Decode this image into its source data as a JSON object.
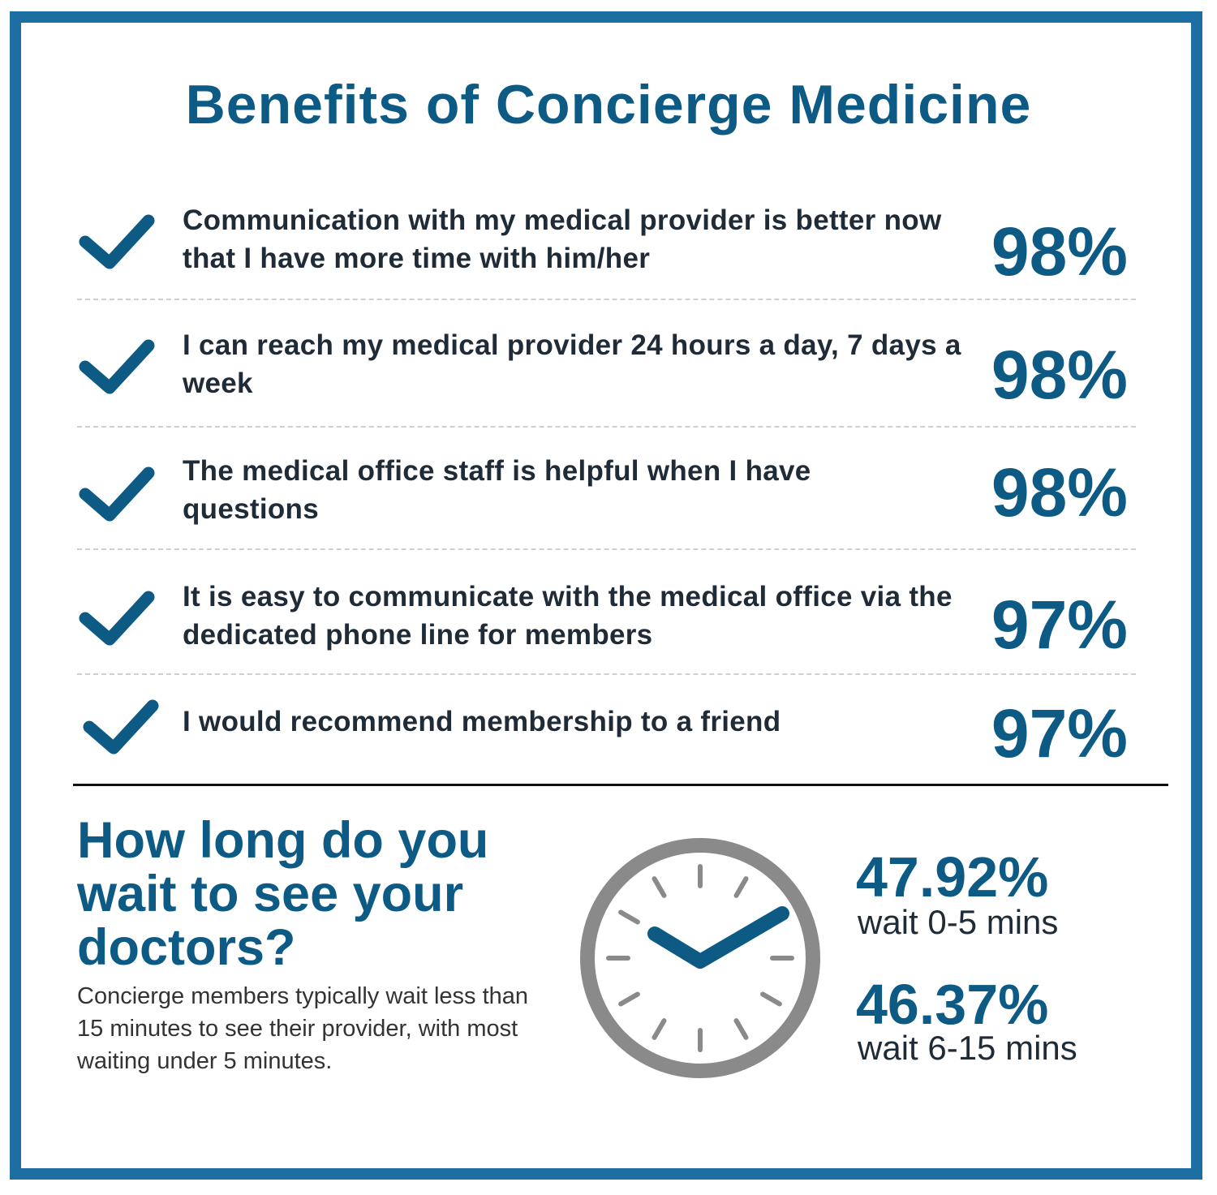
{
  "title": "Benefits of Concierge Medicine",
  "benefits": [
    {
      "text": "Communication with my medical provider is better now that I have more time with him/her",
      "percent": "98%"
    },
    {
      "text": "I can reach my medical provider 24 hours a day, 7 days a week",
      "percent": "98%"
    },
    {
      "text": "The medical office staff is helpful when I have questions",
      "percent": "98%"
    },
    {
      "text": "It is easy to communicate with the medical office via the dedicated phone line for members",
      "percent": "97%"
    },
    {
      "text": "I would recommend membership to a friend",
      "percent": "97%"
    }
  ],
  "wait": {
    "question": "How long do you wait to see your doctors?",
    "description": "Concierge members typically wait less than 15 minutes to see their provider, with most waiting under 5 minutes.",
    "stats": [
      {
        "value": "47.92%",
        "label": "wait 0-5 mins"
      },
      {
        "value": "46.37%",
        "label": "wait 6-15 mins"
      }
    ]
  },
  "colors": {
    "accent": "#0d5b85",
    "border": "#1d6fa3",
    "clock": "#8a8a8a"
  },
  "icons": {
    "check": "check-icon",
    "clock": "clock-icon"
  }
}
